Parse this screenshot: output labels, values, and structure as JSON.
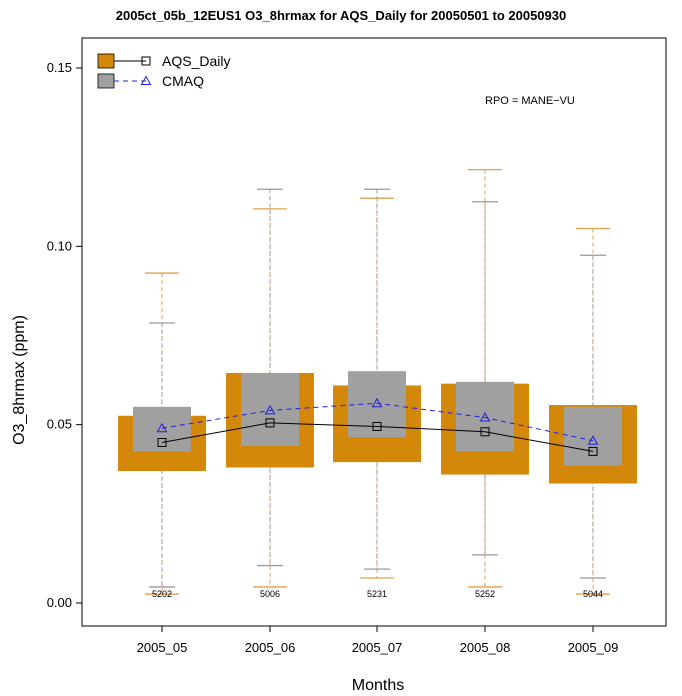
{
  "chart_data": {
    "type": "boxplot",
    "title": "2005ct_05b_12EUS1 O3_8hrmax for AQS_Daily for 20050501 to 20050930",
    "xlabel": "Months",
    "ylabel": "O3_8hrmax (ppm)",
    "ylim": [
      -0.003,
      0.16
    ],
    "yticks": [
      "0.00",
      "0.05",
      "0.10",
      "0.15"
    ],
    "ytick_values": [
      0.0,
      0.05,
      0.1,
      0.15
    ],
    "categories": [
      "2005_05",
      "2005_06",
      "2005_07",
      "2005_08",
      "2005_09"
    ],
    "counts": [
      "5202",
      "5006",
      "5231",
      "5252",
      "5044"
    ],
    "annotation": "RPO = MANE−VU",
    "legend_position": "top-left",
    "series": [
      {
        "name": "AQS_Daily",
        "box_color": "#d4880a",
        "whisker_color": "#e0a050",
        "line_color": "#000000",
        "marker": "square",
        "line_style": "solid",
        "q1": [
          0.037,
          0.038,
          0.0395,
          0.036,
          0.0335
        ],
        "q3": [
          0.0525,
          0.0645,
          0.061,
          0.0615,
          0.0555
        ],
        "median": [
          0.045,
          0.0505,
          0.0495,
          0.048,
          0.0425
        ],
        "whisker_low": [
          0.0025,
          0.0045,
          0.007,
          0.0045,
          0.0025
        ],
        "whisker_high": [
          0.0925,
          0.1105,
          0.1135,
          0.1215,
          0.105
        ]
      },
      {
        "name": "CMAQ",
        "box_color": "#a0a0a0",
        "whisker_color": "#9a9a9a",
        "line_color": "#2020e0",
        "marker": "triangle",
        "line_style": "dashed",
        "q1": [
          0.0425,
          0.044,
          0.0465,
          0.0425,
          0.0385
        ],
        "q3": [
          0.055,
          0.0645,
          0.065,
          0.062,
          0.055
        ],
        "median": [
          0.049,
          0.054,
          0.056,
          0.052,
          0.0455
        ],
        "whisker_low": [
          0.0045,
          0.0105,
          0.0095,
          0.0135,
          0.007
        ],
        "whisker_high": [
          0.0785,
          0.116,
          0.116,
          0.1125,
          0.0975
        ]
      }
    ]
  }
}
